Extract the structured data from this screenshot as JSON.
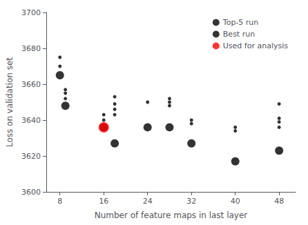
{
  "chart_data": {
    "type": "scatter",
    "xlabel": "Number of feature maps in last layer",
    "ylabel": "Loss on validation set",
    "xlim": [
      5.5,
      51
    ],
    "ylim": [
      3600,
      3700
    ],
    "xticks": [
      8,
      16,
      24,
      32,
      40,
      48
    ],
    "yticks": [
      3600,
      3620,
      3640,
      3660,
      3680,
      3700
    ],
    "grid": false,
    "legend": "upper right",
    "marker": "circle",
    "series": [
      {
        "name": "Top-5 run",
        "color": "black",
        "x": [
          8,
          8,
          9,
          9,
          9,
          16,
          16,
          18,
          18,
          18,
          18,
          24,
          28,
          28,
          28,
          32,
          32,
          40,
          40,
          48,
          48,
          48,
          48
        ],
        "values": [
          3675,
          3670,
          3657,
          3655,
          3652,
          3643,
          3640,
          3653,
          3649,
          3646,
          3643,
          3650,
          3652,
          3650,
          3648,
          3640,
          3638,
          3636,
          3634,
          3649,
          3641,
          3639,
          3636
        ]
      },
      {
        "name": "Best run",
        "color": "black",
        "x": [
          8,
          9,
          16,
          18,
          24,
          28,
          32,
          40,
          48
        ],
        "values": [
          3665,
          3648,
          3636,
          3627,
          3636,
          3636,
          3627,
          3617,
          3623
        ]
      },
      {
        "name": "Used for analysis",
        "color": "red",
        "x": [
          16
        ],
        "values": [
          3636
        ]
      }
    ]
  }
}
